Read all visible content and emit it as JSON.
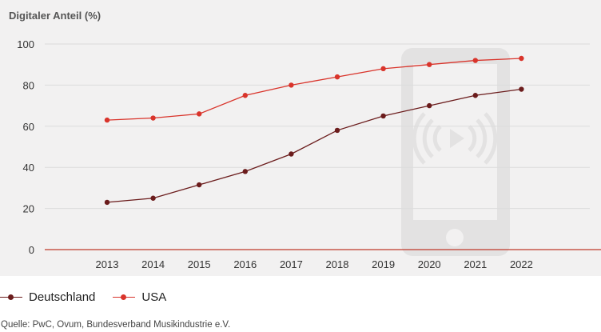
{
  "chart_data": {
    "type": "line",
    "title": "",
    "ylabel": "Digitaler Anteil (%)",
    "xlabel": "",
    "ylim": [
      0,
      100
    ],
    "yticks": [
      0,
      20,
      40,
      60,
      80,
      100
    ],
    "x": [
      "2013",
      "2014",
      "2015",
      "2016",
      "2017",
      "2018",
      "2019",
      "2020",
      "2021",
      "2022"
    ],
    "series": [
      {
        "name": "Deutschland",
        "color": "#6b1c1c",
        "values": [
          23,
          25,
          31.5,
          38,
          46.5,
          58,
          65,
          70,
          75,
          78
        ]
      },
      {
        "name": "USA",
        "color": "#d9342b",
        "values": [
          63,
          64,
          66,
          75,
          80,
          84,
          88,
          90,
          92,
          93
        ]
      }
    ],
    "legend_position": "bottom-left",
    "grid": true,
    "background_icon": "smartphone-play-icon"
  },
  "source": "Quelle: PwC, Ovum, Bundesverband Musikindustrie e.V.",
  "colors": {
    "background": "#f2f1f1",
    "grid": "#dcdcdc",
    "axis": "#c0392b",
    "icon": "#e2e1e1"
  }
}
